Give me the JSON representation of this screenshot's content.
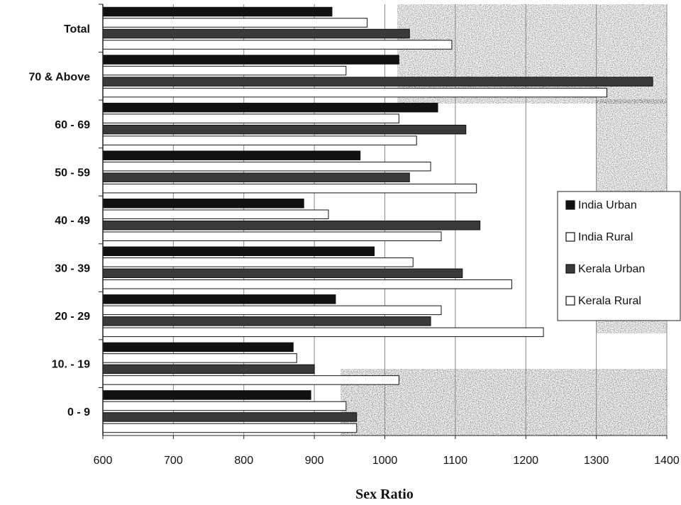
{
  "chart_data": {
    "type": "bar",
    "orientation": "horizontal",
    "categories": [
      "Total",
      "70 & Above",
      "60 - 69",
      "50 - 59",
      "40 - 49",
      "30 - 39",
      "20 - 29",
      "10. - 19",
      "0 - 9"
    ],
    "series": [
      {
        "name": "India Urban",
        "color": "#111111",
        "values": [
          925,
          1020,
          1075,
          965,
          885,
          985,
          930,
          870,
          895
        ]
      },
      {
        "name": "India Rural",
        "color": "#ffffff",
        "values": [
          975,
          945,
          1020,
          1065,
          920,
          1040,
          1080,
          875,
          945
        ]
      },
      {
        "name": "Kerala Urban",
        "color": "#3a3a3a",
        "values": [
          1035,
          1380,
          1115,
          1035,
          1135,
          1110,
          1065,
          900,
          960
        ]
      },
      {
        "name": "Kerala Rural",
        "color": "#ffffff",
        "values": [
          1095,
          1315,
          1045,
          1130,
          1080,
          1180,
          1225,
          1020,
          960
        ]
      }
    ],
    "xlabel": "Sex Ratio",
    "ylabel": "",
    "xlim": [
      600,
      1400
    ],
    "xticks": [
      "600",
      "700",
      "800",
      "900",
      "1000",
      "1100",
      "1200",
      "1300",
      "1400"
    ],
    "grid": true,
    "legend_position": "right"
  }
}
